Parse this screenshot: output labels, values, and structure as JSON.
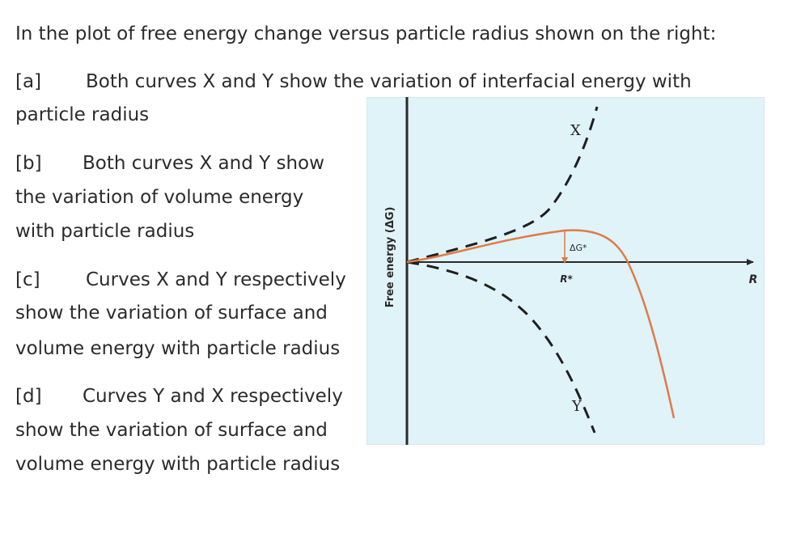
{
  "question": {
    "stem": "In the plot of free energy change versus particle radius shown on the right:",
    "options": [
      {
        "label": "[a]",
        "lines": [
          "Both curves X and Y show the variation of interfacial energy with",
          "particle radius"
        ]
      },
      {
        "label": "[b]",
        "lines": [
          "Both curves X and Y show",
          "the variation of volume energy",
          "with particle radius"
        ]
      },
      {
        "label": "[c]",
        "lines": [
          "Curves X and Y respectively",
          "show the variation of surface and",
          "volume energy with particle radius"
        ]
      },
      {
        "label": "[d]",
        "lines": [
          "Curves Y and X respectively",
          "show the variation of surface and",
          "volume energy with particle radius"
        ]
      }
    ]
  },
  "figure": {
    "background": "#dff3f8",
    "border": "#c9dde3",
    "axis_color": "#2a2a2a",
    "dash_color": "#1f1f1f",
    "curve_color": "#e07a45",
    "ylabel": "Free energy (ΔG)",
    "xlabel": "R",
    "curve_x_label": "X",
    "curve_y_label": "Y",
    "barrier_label": "ΔG*",
    "critical_radius_label": "R*"
  }
}
